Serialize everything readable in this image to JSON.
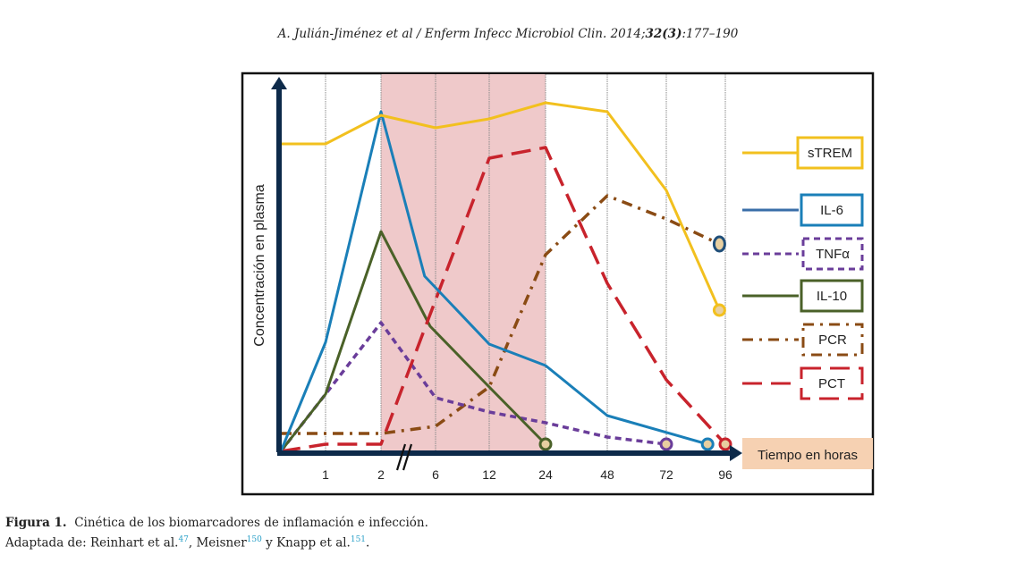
{
  "header": {
    "authors": "A. Julián-Jiménez et al / Enferm Infecc Microbiol Clin. 2014;",
    "volume_issue": "32(3)",
    "pages": ":177–190"
  },
  "caption": {
    "label": "Figura 1.",
    "text": "Cinética de los biomarcadores de inflamación e infección.",
    "adapted_prefix": "Adaptada de: Reinhart et al.",
    "ref1": "47",
    "sep1": ", Meisner",
    "ref2": "150",
    "sep2": " y Knapp et al.",
    "ref3": "151",
    "end": "."
  },
  "chart_data": {
    "type": "line",
    "title": "",
    "xlabel": "Tiempo en horas",
    "ylabel": "Concentración en plasma",
    "x_ticks": [
      "1",
      "2",
      "6",
      "12",
      "24",
      "48",
      "72",
      "96"
    ],
    "x_positions_note": "x values are category index positions: 0 = origin, 1..8 = ticks 1,2,6,12,24,48,72,96",
    "ylim": [
      0,
      100
    ],
    "y_units": "relative concentration (no scale shown)",
    "shaded_region": {
      "from_tick": "2",
      "to_tick": "24",
      "color": "#efc9ca"
    },
    "axis_break": "between 2 and 6",
    "grid": "vertical dotted lines at each tick",
    "legend_placement": "right",
    "series": [
      {
        "name": "sTREM",
        "color": "#f2c01e",
        "style": "solid",
        "x": [
          0,
          1,
          2,
          3,
          4,
          5,
          6,
          7,
          7.9
        ],
        "y": [
          86,
          86,
          94,
          90.5,
          93,
          97.5,
          95,
          73,
          39.5
        ],
        "end_marker": true
      },
      {
        "name": "IL-6",
        "color": "#1a7fb8",
        "style": "solid",
        "x": [
          0,
          1,
          2,
          2.8,
          4,
          5,
          6,
          7.7
        ],
        "y": [
          0,
          30.5,
          95,
          49,
          30,
          24,
          10,
          2
        ],
        "end_marker": true
      },
      {
        "name": "TNFα",
        "color": "#6a3d9a",
        "style": "dashed",
        "x": [
          0,
          1,
          2,
          3,
          4,
          5,
          6,
          7
        ],
        "y": [
          0,
          16,
          36,
          15,
          11,
          8,
          4,
          2
        ],
        "end_marker": true
      },
      {
        "name": "IL-10",
        "color": "#4a6128",
        "style": "solid",
        "x": [
          0,
          1,
          2,
          2.9,
          4,
          5
        ],
        "y": [
          0,
          16,
          61.5,
          35,
          18,
          2
        ],
        "end_marker": true
      },
      {
        "name": "PCR",
        "color": "#8a4b14",
        "style": "dashdot",
        "x": [
          0,
          1,
          2,
          3,
          4,
          5,
          6,
          7,
          7.9
        ],
        "y": [
          5,
          5,
          5,
          7,
          18,
          55,
          71.5,
          65,
          58
        ],
        "end_marker": true
      },
      {
        "name": "PCT",
        "color": "#c8232c",
        "style": "longdash",
        "x": [
          0,
          1,
          2,
          4,
          5,
          6,
          7,
          8
        ],
        "y": [
          0,
          2,
          2,
          82,
          85,
          47,
          20,
          2
        ],
        "end_marker": true
      }
    ]
  }
}
